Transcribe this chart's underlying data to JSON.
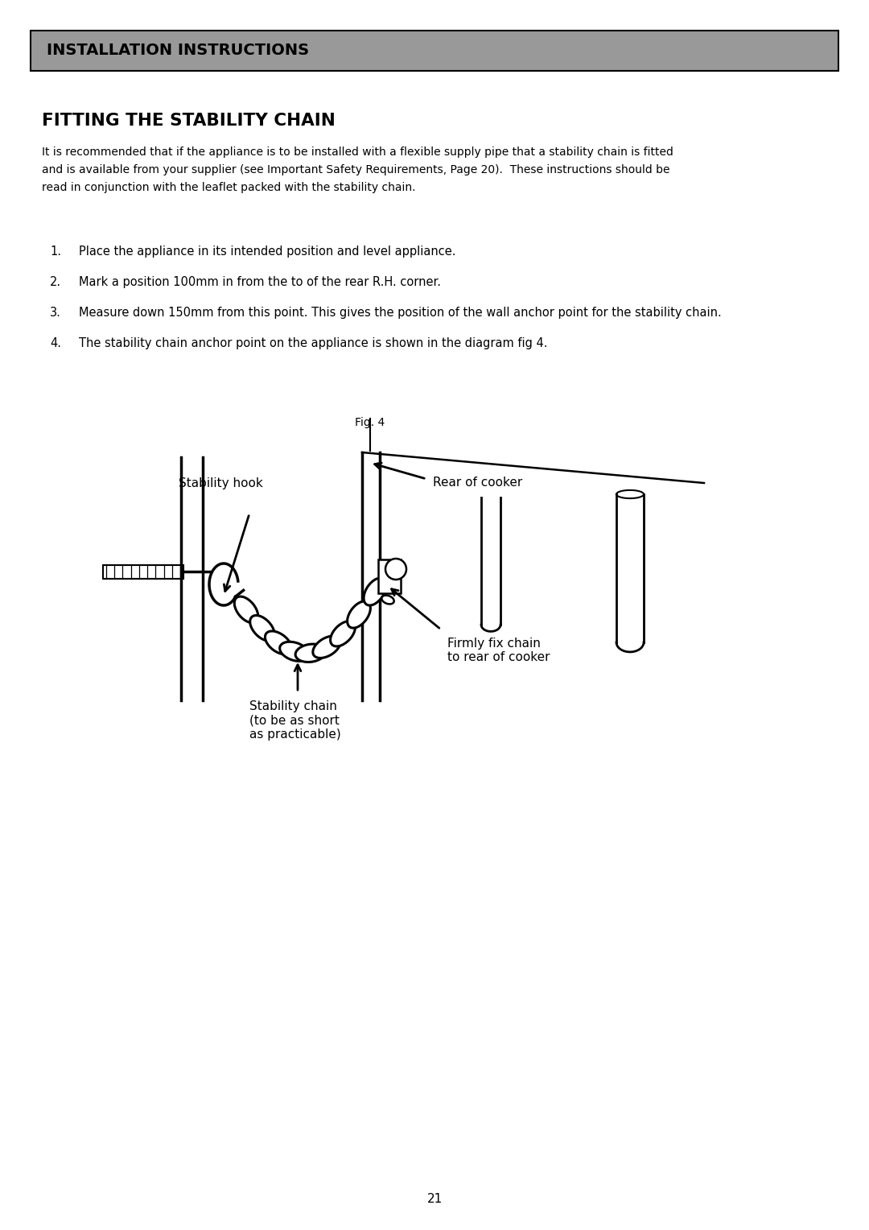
{
  "title_box_text": "INSTALLATION INSTRUCTIONS",
  "title_box_bg": "#999999",
  "title_box_text_color": "#000000",
  "section_title": "FITTING THE STABILITY CHAIN",
  "body_line1": "It is recommended that if the appliance is to be installed with a flexible supply pipe that a stability chain is fitted",
  "body_line2": "and is available from your supplier (see Important Safety Requirements, Page 20).  These instructions should be",
  "body_line3": "read in conjunction with the leaflet packed with the stability chain.",
  "steps": [
    "Place the appliance in its intended position and level appliance.",
    "Mark a position 100mm in from the to of the rear R.H. corner.",
    "Measure down 150mm from this point. This gives the position of the wall anchor point for the stability chain.",
    "The stability chain anchor point on the appliance is shown in the diagram fig 4."
  ],
  "fig_label": "Fig. 4",
  "label_stability_hook": "Stability hook",
  "label_rear_cooker": "Rear of cooker",
  "label_stability_chain": "Stability chain\n(to be as short\nas practicable)",
  "label_firmly_fix": "Firmly fix chain\nto rear of cooker",
  "page_number": "21",
  "bg_color": "#ffffff",
  "text_color": "#000000",
  "line_color": "#000000"
}
